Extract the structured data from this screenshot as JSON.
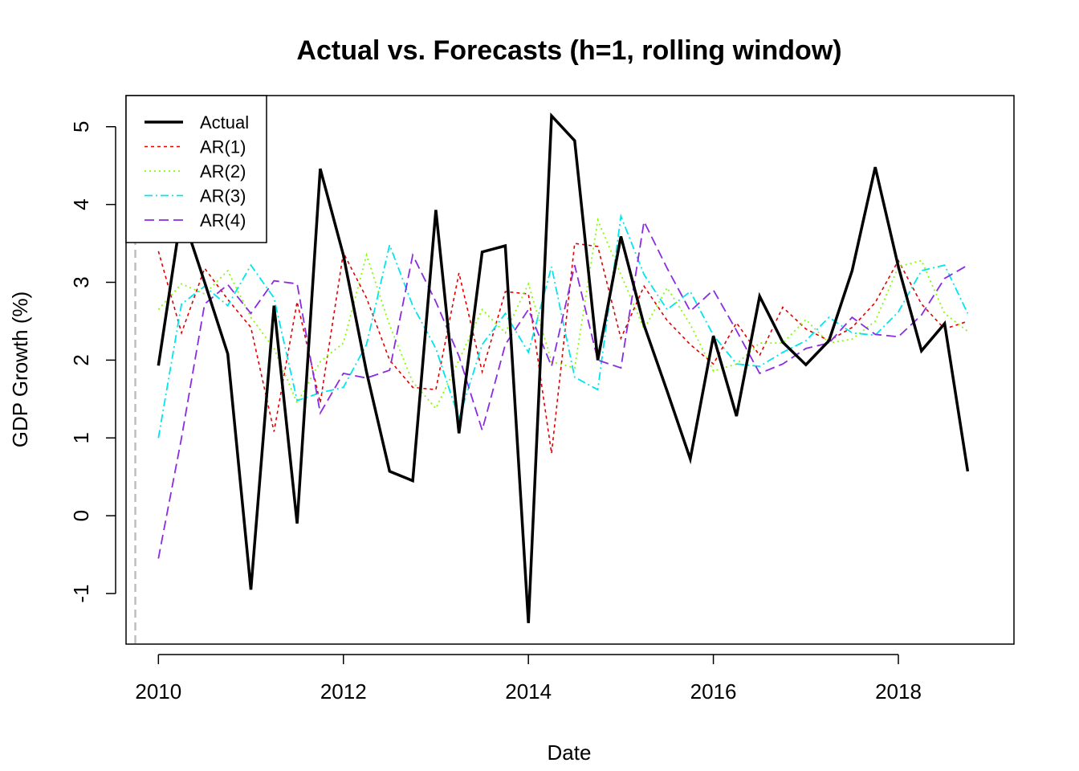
{
  "chart_data": {
    "type": "line",
    "title": "Actual vs. Forecasts (h=1, rolling window)",
    "xlabel": "Date",
    "ylabel": "GDP Growth (%)",
    "xlim": [
      2009.65,
      2019.25
    ],
    "ylim": [
      -1.65,
      5.4
    ],
    "x_ticks": [
      2010,
      2012,
      2014,
      2016,
      2018
    ],
    "y_ticks": [
      -1,
      0,
      1,
      2,
      3,
      4,
      5
    ],
    "grid": false,
    "legend_position": "top-left",
    "vline": {
      "x": 2009.75,
      "color": "#bebebe",
      "dash": "dashed"
    },
    "x": [
      2010.0,
      2010.25,
      2010.5,
      2010.75,
      2011.0,
      2011.25,
      2011.5,
      2011.75,
      2012.0,
      2012.25,
      2012.5,
      2012.75,
      2013.0,
      2013.25,
      2013.5,
      2013.75,
      2014.0,
      2014.25,
      2014.5,
      2014.75,
      2015.0,
      2015.25,
      2015.5,
      2015.75,
      2016.0,
      2016.25,
      2016.5,
      2016.75,
      2017.0,
      2017.25,
      2017.5,
      2017.75,
      2018.0,
      2018.25,
      2018.5,
      2018.75
    ],
    "series": [
      {
        "name": "Actual",
        "color": "#000000",
        "dash": "solid",
        "width": 3.5,
        "values": [
          1.93,
          3.9,
          3.0,
          2.08,
          -0.95,
          2.7,
          -0.1,
          4.46,
          3.35,
          1.85,
          0.57,
          0.45,
          3.93,
          1.06,
          3.39,
          3.47,
          -1.38,
          5.14,
          4.82,
          2.0,
          3.59,
          2.45,
          1.6,
          0.73,
          2.31,
          1.28,
          2.82,
          2.23,
          1.94,
          2.25,
          3.15,
          4.48,
          3.2,
          2.12,
          2.47,
          0.57
        ]
      },
      {
        "name": "AR(1)",
        "color": "#df0000",
        "dash": "4,4",
        "width": 1.6,
        "values": [
          3.4,
          2.35,
          3.18,
          2.78,
          2.42,
          1.08,
          2.75,
          1.45,
          3.38,
          2.8,
          2.0,
          1.65,
          1.62,
          3.12,
          1.85,
          2.88,
          2.85,
          0.8,
          3.5,
          3.46,
          2.28,
          2.95,
          2.51,
          2.2,
          1.95,
          2.48,
          2.06,
          2.68,
          2.4,
          2.25,
          2.42,
          2.74,
          3.28,
          2.72,
          2.4,
          2.5
        ]
      },
      {
        "name": "AR(2)",
        "color": "#7fff00",
        "dash": "2,4",
        "width": 1.8,
        "values": [
          2.65,
          2.98,
          2.85,
          3.15,
          2.55,
          2.15,
          1.45,
          1.98,
          2.22,
          3.35,
          2.45,
          1.72,
          1.38,
          2.0,
          2.65,
          2.35,
          2.98,
          1.98,
          1.9,
          3.8,
          3.1,
          2.4,
          2.93,
          2.46,
          1.86,
          1.95,
          2.22,
          2.22,
          2.52,
          2.22,
          2.27,
          2.5,
          3.2,
          3.28,
          2.6,
          2.37
        ]
      },
      {
        "name": "AR(3)",
        "color": "#00e5ee",
        "dash": "10,4,2,4",
        "width": 1.8,
        "values": [
          1.0,
          2.72,
          2.95,
          2.7,
          3.22,
          2.8,
          1.48,
          1.58,
          1.65,
          2.2,
          3.48,
          2.7,
          2.15,
          1.25,
          2.2,
          2.6,
          2.1,
          3.2,
          1.78,
          1.62,
          3.85,
          3.1,
          2.65,
          2.88,
          2.32,
          1.95,
          1.92,
          2.1,
          2.25,
          2.55,
          2.35,
          2.32,
          2.62,
          3.15,
          3.22,
          2.6
        ]
      },
      {
        "name": "AR(4)",
        "color": "#8a2be2",
        "dash": "12,6",
        "width": 1.8,
        "values": [
          -0.55,
          1.0,
          2.72,
          2.97,
          2.6,
          3.02,
          2.98,
          1.32,
          1.83,
          1.77,
          1.87,
          3.35,
          2.75,
          2.05,
          1.1,
          2.2,
          2.65,
          1.92,
          3.22,
          2.0,
          1.9,
          3.78,
          3.18,
          2.63,
          2.9,
          2.38,
          1.83,
          1.95,
          2.15,
          2.22,
          2.55,
          2.33,
          2.3,
          2.58,
          3.05,
          3.22
        ]
      }
    ]
  }
}
